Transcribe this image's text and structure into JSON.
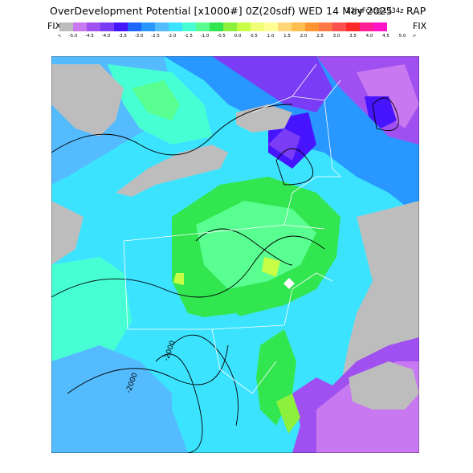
{
  "header": {
    "title": "OverDevelopment Potential [x1000#] 0Z(20sdf) WED 14 May 2025",
    "valid": "12hrFcst@1334z",
    "model": "RAP"
  },
  "colorbar": {
    "left_label": "FIX",
    "right_label": "FIX",
    "under_arrow": "<",
    "over_arrow": ">",
    "colors": [
      "#bdbdbd",
      "#c878f0",
      "#a050f0",
      "#7b3cf5",
      "#4614ff",
      "#1e64ff",
      "#2897ff",
      "#55bbff",
      "#3ce3ff",
      "#46ffd2",
      "#5aff91",
      "#32e650",
      "#8cf03c",
      "#c8ff46",
      "#f0ff78",
      "#ffff96",
      "#ffd778",
      "#ffbe50",
      "#ff9632",
      "#ff7846",
      "#ff5050",
      "#ff2828",
      "#ff1e96",
      "#ff14c8"
    ],
    "ticks": [
      "-5.0",
      "-4.5",
      "-4.0",
      "-3.5",
      "-3.0",
      "-2.5",
      "-2.0",
      "-1.5",
      "-1.0",
      "-0.5",
      "0.0",
      "0.5",
      "1.0",
      "1.5",
      "2.0",
      "2.5",
      "3.0",
      "3.5",
      "4.0",
      "4.5",
      "5.0"
    ]
  },
  "map": {
    "contour_labels": [
      "-2000",
      "-2000"
    ]
  }
}
